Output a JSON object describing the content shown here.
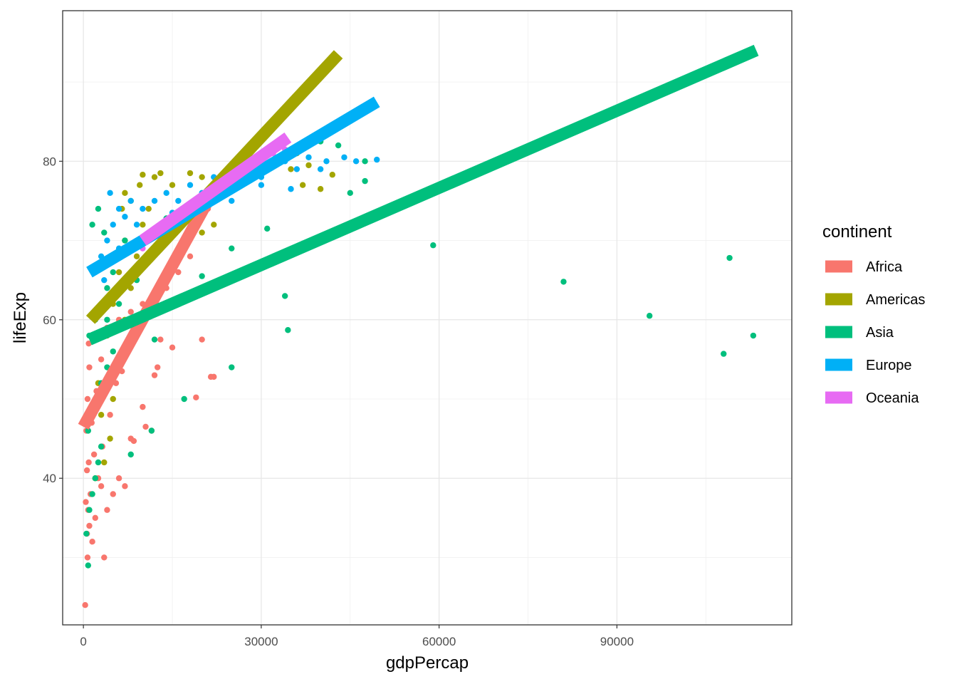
{
  "chart_data": {
    "type": "scatter",
    "title": "",
    "xlabel": "gdpPercap",
    "ylabel": "lifeExp",
    "xlim": [
      -3500,
      119500
    ],
    "ylim": [
      21.5,
      99
    ],
    "x_ticks": [
      0,
      30000,
      60000,
      90000
    ],
    "y_ticks": [
      40,
      60,
      80
    ],
    "x_tick_labels": [
      "0",
      "30000",
      "60000",
      "90000"
    ],
    "y_tick_labels": [
      "40",
      "60",
      "80"
    ],
    "grid": true,
    "legend": {
      "title": "continent",
      "position": "right"
    },
    "series": [
      {
        "name": "Africa",
        "color": "#F8766D",
        "fit_line": {
          "x": [
            0,
            21000
          ],
          "y": [
            46.5,
            75
          ]
        },
        "points": [
          [
            300,
            24
          ],
          [
            700,
            30
          ],
          [
            3500,
            30
          ],
          [
            1500,
            32
          ],
          [
            600,
            33
          ],
          [
            1000,
            34
          ],
          [
            2000,
            35
          ],
          [
            800,
            36
          ],
          [
            4000,
            36
          ],
          [
            400,
            37
          ],
          [
            1200,
            38
          ],
          [
            5000,
            38
          ],
          [
            3000,
            39
          ],
          [
            2500,
            40
          ],
          [
            600,
            41
          ],
          [
            6000,
            40
          ],
          [
            7000,
            39
          ],
          [
            900,
            42
          ],
          [
            1800,
            43
          ],
          [
            3200,
            44
          ],
          [
            8000,
            45
          ],
          [
            500,
            46
          ],
          [
            1400,
            47
          ],
          [
            4500,
            48
          ],
          [
            10000,
            49
          ],
          [
            700,
            50
          ],
          [
            2200,
            51
          ],
          [
            5500,
            52
          ],
          [
            12000,
            53
          ],
          [
            1000,
            54
          ],
          [
            3000,
            55
          ],
          [
            7500,
            56
          ],
          [
            15000,
            56.5
          ],
          [
            20000,
            57.5
          ],
          [
            900,
            57
          ],
          [
            2000,
            58
          ],
          [
            4000,
            59
          ],
          [
            6000,
            60
          ],
          [
            8000,
            61
          ],
          [
            10000,
            62
          ],
          [
            12000,
            63
          ],
          [
            14000,
            64
          ],
          [
            16000,
            66
          ],
          [
            18000,
            68
          ],
          [
            21000,
            74
          ],
          [
            22000,
            52.8
          ],
          [
            21500,
            52.8
          ],
          [
            19000,
            50.2
          ],
          [
            13000,
            57.5
          ],
          [
            10500,
            46.5
          ],
          [
            11500,
            46
          ],
          [
            8500,
            44.7
          ],
          [
            6500,
            53.5
          ],
          [
            12500,
            54
          ]
        ]
      },
      {
        "name": "Americas",
        "color": "#A3A500",
        "fit_line": {
          "x": [
            1200,
            43000
          ],
          "y": [
            60,
            93.5
          ]
        },
        "points": [
          [
            2000,
            40
          ],
          [
            3500,
            42
          ],
          [
            4500,
            45
          ],
          [
            3000,
            48
          ],
          [
            5000,
            50
          ],
          [
            2500,
            52
          ],
          [
            6000,
            55
          ],
          [
            4000,
            58
          ],
          [
            7000,
            60
          ],
          [
            5000,
            62
          ],
          [
            8000,
            64
          ],
          [
            6000,
            66
          ],
          [
            9000,
            68
          ],
          [
            7000,
            70
          ],
          [
            10000,
            72
          ],
          [
            6500,
            74
          ],
          [
            8000,
            75
          ],
          [
            7000,
            76
          ],
          [
            9500,
            77
          ],
          [
            10000,
            78.3
          ],
          [
            12000,
            78
          ],
          [
            13000,
            78.5
          ],
          [
            15000,
            77
          ],
          [
            18000,
            78.5
          ],
          [
            20000,
            78
          ],
          [
            22000,
            76
          ],
          [
            25000,
            77
          ],
          [
            28000,
            79
          ],
          [
            30000,
            80
          ],
          [
            33000,
            80.5
          ],
          [
            35000,
            79
          ],
          [
            37000,
            77
          ],
          [
            40000,
            76.5
          ],
          [
            42000,
            78.3
          ],
          [
            38000,
            79.5
          ],
          [
            36000,
            81
          ],
          [
            20000,
            71
          ],
          [
            22000,
            72
          ],
          [
            14000,
            72.5
          ],
          [
            11000,
            74
          ]
        ]
      },
      {
        "name": "Asia",
        "color": "#00BF7D",
        "fit_line": {
          "x": [
            1000,
            113500
          ],
          "y": [
            57.5,
            94
          ]
        },
        "points": [
          [
            800,
            29
          ],
          [
            500,
            33
          ],
          [
            1000,
            36
          ],
          [
            1500,
            38
          ],
          [
            2000,
            40
          ],
          [
            2500,
            42
          ],
          [
            3000,
            44
          ],
          [
            800,
            46
          ],
          [
            1200,
            48
          ],
          [
            2000,
            50
          ],
          [
            3000,
            52
          ],
          [
            4000,
            54
          ],
          [
            5000,
            56
          ],
          [
            1000,
            58
          ],
          [
            2000,
            60
          ],
          [
            3000,
            62
          ],
          [
            4000,
            64
          ],
          [
            5000,
            66
          ],
          [
            6000,
            68
          ],
          [
            7000,
            70
          ],
          [
            1500,
            72
          ],
          [
            2500,
            74
          ],
          [
            3500,
            71
          ],
          [
            8000,
            43
          ],
          [
            11500,
            46
          ],
          [
            17000,
            50
          ],
          [
            25000,
            54
          ],
          [
            12000,
            57.5
          ],
          [
            20000,
            65.5
          ],
          [
            25000,
            69
          ],
          [
            31000,
            71.5
          ],
          [
            34000,
            63
          ],
          [
            34500,
            58.7
          ],
          [
            59000,
            69.4
          ],
          [
            81000,
            64.8
          ],
          [
            95500,
            60.5
          ],
          [
            108000,
            55.7
          ],
          [
            109000,
            67.8
          ],
          [
            113000,
            58
          ],
          [
            45000,
            76
          ],
          [
            47500,
            77.5
          ],
          [
            47500,
            80
          ],
          [
            43000,
            82
          ],
          [
            40000,
            82.5
          ],
          [
            22000,
            75
          ],
          [
            18000,
            73
          ],
          [
            14000,
            72.8
          ],
          [
            9000,
            65
          ],
          [
            6000,
            62
          ],
          [
            4000,
            60
          ]
        ]
      },
      {
        "name": "Europe",
        "color": "#00B0F6",
        "fit_line": {
          "x": [
            1000,
            49500
          ],
          "y": [
            66,
            87.5
          ]
        },
        "points": [
          [
            2000,
            66
          ],
          [
            3000,
            68
          ],
          [
            4000,
            70
          ],
          [
            5000,
            72
          ],
          [
            6000,
            74
          ],
          [
            4500,
            76
          ],
          [
            7000,
            73
          ],
          [
            8000,
            75
          ],
          [
            10000,
            74
          ],
          [
            12000,
            75
          ],
          [
            14000,
            76
          ],
          [
            16000,
            75
          ],
          [
            18000,
            77
          ],
          [
            20000,
            76
          ],
          [
            22000,
            78
          ],
          [
            24000,
            77.5
          ],
          [
            26000,
            78
          ],
          [
            28000,
            79
          ],
          [
            30000,
            78
          ],
          [
            32000,
            79.5
          ],
          [
            34000,
            80
          ],
          [
            36000,
            79
          ],
          [
            38000,
            80.5
          ],
          [
            40000,
            79
          ],
          [
            41000,
            80
          ],
          [
            44000,
            80.5
          ],
          [
            46000,
            80
          ],
          [
            49500,
            80.2
          ],
          [
            35000,
            76.5
          ],
          [
            30000,
            77
          ],
          [
            25000,
            75
          ],
          [
            15000,
            73.5
          ],
          [
            9000,
            72
          ],
          [
            11000,
            70
          ],
          [
            6000,
            69
          ],
          [
            3500,
            65
          ]
        ]
      },
      {
        "name": "Oceania",
        "color": "#E76BF3",
        "fit_line": {
          "x": [
            10000,
            34500
          ],
          "y": [
            70,
            83
          ]
        },
        "points": [
          [
            10000,
            69
          ],
          [
            12000,
            70.5
          ],
          [
            14000,
            71
          ],
          [
            16000,
            72
          ],
          [
            18000,
            73.5
          ],
          [
            20000,
            75
          ],
          [
            22000,
            76.5
          ],
          [
            24000,
            78
          ],
          [
            26000,
            79
          ],
          [
            28000,
            80
          ],
          [
            30000,
            80.5
          ],
          [
            32000,
            81
          ],
          [
            34000,
            81.5
          ]
        ]
      }
    ]
  }
}
